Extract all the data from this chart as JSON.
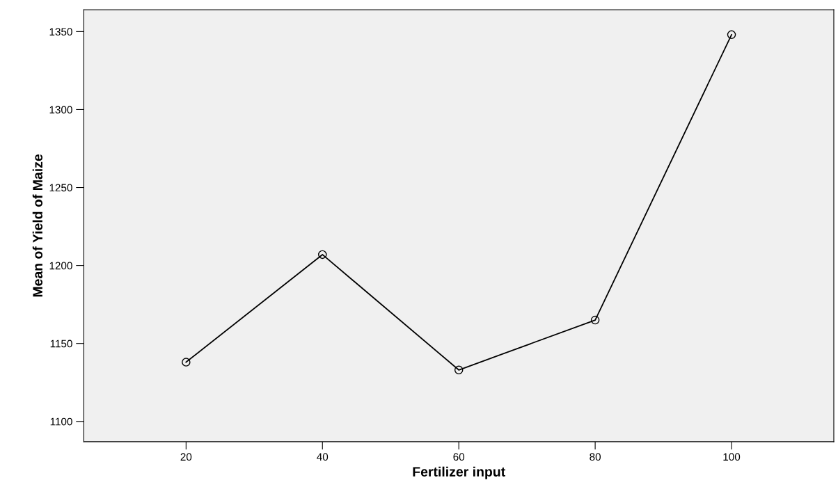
{
  "chart_data": {
    "type": "line",
    "xlabel": "Fertilizer input",
    "ylabel": "Mean of Yield of Maize",
    "x": [
      20,
      40,
      60,
      80,
      100
    ],
    "series": [
      {
        "color": "#000000",
        "values": [
          1138,
          1207,
          1133,
          1165,
          1348
        ]
      }
    ],
    "xlim": [
      5,
      115
    ],
    "xticks": [
      20,
      40,
      60,
      80,
      100
    ],
    "ylim": [
      1087,
      1364
    ],
    "yticks": [
      1100,
      1150,
      1200,
      1250,
      1300,
      1350
    ],
    "marker": "circle",
    "line_style": "solid",
    "grid": false,
    "legend": false
  }
}
